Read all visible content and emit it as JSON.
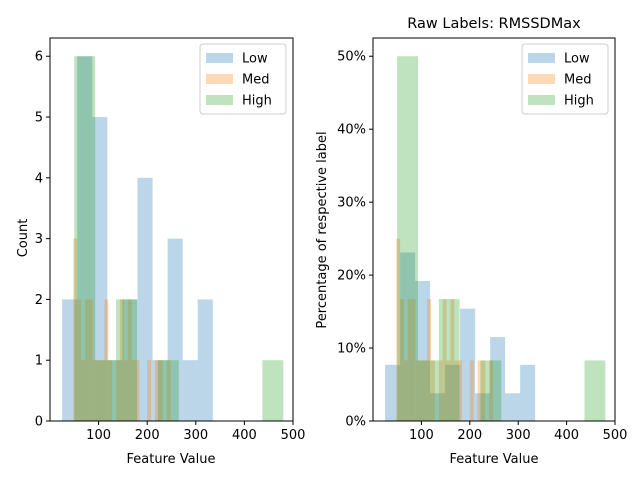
{
  "chart_data": [
    {
      "type": "histogram",
      "title": "",
      "xlabel": "Feature Value",
      "ylabel": "Count",
      "xlim": [
        0,
        500
      ],
      "ylim": [
        0,
        6.3
      ],
      "x_ticks": [
        "100",
        "200",
        "300",
        "400",
        "500"
      ],
      "x_tick_values": [
        100,
        200,
        300,
        400,
        500
      ],
      "y_ticks": [
        "0",
        "1",
        "2",
        "3",
        "4",
        "5",
        "6"
      ],
      "y_tick_values": [
        0,
        1,
        2,
        3,
        4,
        5,
        6
      ],
      "legend": {
        "position": "top-right",
        "entries": [
          "Low",
          "Med",
          "High"
        ]
      },
      "series": [
        {
          "name": "Low",
          "color": "#1f77b4",
          "bins": [
            [
              25,
              56,
              2
            ],
            [
              56,
              87,
              6
            ],
            [
              87,
              118,
              5
            ],
            [
              118,
              149,
              1
            ],
            [
              149,
              180,
              2
            ],
            [
              180,
              211,
              4
            ],
            [
              211,
              242,
              1
            ],
            [
              242,
              273,
              3
            ],
            [
              273,
              304,
              1
            ],
            [
              304,
              335,
              2
            ]
          ]
        },
        {
          "name": "Med",
          "color": "#ff7f0e",
          "bins": [
            [
              48,
              56,
              3
            ],
            [
              56,
              64,
              2
            ],
            [
              64,
              72,
              1
            ],
            [
              72,
              80,
              2
            ],
            [
              80,
              88,
              2
            ],
            [
              88,
              96,
              1
            ],
            [
              96,
              104,
              1
            ],
            [
              104,
              112,
              1
            ],
            [
              112,
              120,
              2
            ],
            [
              120,
              128,
              1
            ],
            [
              128,
              136,
              0
            ],
            [
              136,
              144,
              1
            ],
            [
              144,
              152,
              2
            ],
            [
              152,
              160,
              1
            ],
            [
              160,
              168,
              2
            ],
            [
              168,
              176,
              1
            ],
            [
              176,
              184,
              1
            ],
            [
              184,
              192,
              0
            ],
            [
              192,
              200,
              0
            ],
            [
              200,
              208,
              1
            ],
            [
              208,
              216,
              0
            ],
            [
              216,
              224,
              1
            ],
            [
              224,
              232,
              1
            ],
            [
              232,
              240,
              0
            ],
            [
              240,
              248,
              1
            ]
          ]
        },
        {
          "name": "High",
          "color": "#2ca02c",
          "bins": [
            [
              50,
              93,
              6
            ],
            [
              93,
              136,
              1
            ],
            [
              136,
              179,
              2
            ],
            [
              179,
              222,
              0
            ],
            [
              222,
              265,
              1
            ],
            [
              265,
              308,
              0
            ],
            [
              308,
              351,
              0
            ],
            [
              351,
              394,
              0
            ],
            [
              394,
              437,
              0
            ],
            [
              437,
              480,
              1
            ]
          ]
        }
      ]
    },
    {
      "type": "histogram",
      "title": "Raw Labels: RMSSDMax",
      "xlabel": "Feature Value",
      "ylabel": "Percentage of respective label",
      "xlim": [
        0,
        500
      ],
      "ylim": [
        0,
        0.525
      ],
      "x_ticks": [
        "100",
        "200",
        "300",
        "400",
        "500"
      ],
      "x_tick_values": [
        100,
        200,
        300,
        400,
        500
      ],
      "y_ticks": [
        "0%",
        "10%",
        "20%",
        "30%",
        "40%",
        "50%"
      ],
      "y_tick_values": [
        0,
        0.1,
        0.2,
        0.3,
        0.4,
        0.5
      ],
      "legend": {
        "position": "top-right",
        "entries": [
          "Low",
          "Med",
          "High"
        ]
      },
      "series": [
        {
          "name": "Low",
          "color": "#1f77b4",
          "bins": [
            [
              25,
              56,
              0.077
            ],
            [
              56,
              87,
              0.231
            ],
            [
              87,
              118,
              0.192
            ],
            [
              118,
              149,
              0.038
            ],
            [
              149,
              180,
              0.077
            ],
            [
              180,
              211,
              0.154
            ],
            [
              211,
              242,
              0.038
            ],
            [
              242,
              273,
              0.115
            ],
            [
              273,
              304,
              0.038
            ],
            [
              304,
              335,
              0.077
            ]
          ]
        },
        {
          "name": "Med",
          "color": "#ff7f0e",
          "bins": [
            [
              48,
              56,
              0.25
            ],
            [
              56,
              64,
              0.167
            ],
            [
              64,
              72,
              0.083
            ],
            [
              72,
              80,
              0.167
            ],
            [
              80,
              88,
              0.167
            ],
            [
              88,
              96,
              0.083
            ],
            [
              96,
              104,
              0.083
            ],
            [
              104,
              112,
              0.083
            ],
            [
              112,
              120,
              0.167
            ],
            [
              120,
              128,
              0.083
            ],
            [
              128,
              136,
              0
            ],
            [
              136,
              144,
              0.083
            ],
            [
              144,
              152,
              0.167
            ],
            [
              152,
              160,
              0.083
            ],
            [
              160,
              168,
              0.167
            ],
            [
              168,
              176,
              0.083
            ],
            [
              176,
              184,
              0.083
            ],
            [
              184,
              192,
              0
            ],
            [
              192,
              200,
              0
            ],
            [
              200,
              208,
              0.083
            ],
            [
              208,
              216,
              0
            ],
            [
              216,
              224,
              0.083
            ],
            [
              224,
              232,
              0.083
            ],
            [
              232,
              240,
              0
            ],
            [
              240,
              248,
              0.083
            ]
          ]
        },
        {
          "name": "High",
          "color": "#2ca02c",
          "bins": [
            [
              50,
              93,
              0.5
            ],
            [
              93,
              136,
              0.083
            ],
            [
              136,
              179,
              0.167
            ],
            [
              179,
              222,
              0
            ],
            [
              222,
              265,
              0.083
            ],
            [
              265,
              308,
              0
            ],
            [
              308,
              351,
              0
            ],
            [
              351,
              394,
              0
            ],
            [
              394,
              437,
              0
            ],
            [
              437,
              480,
              0.083
            ]
          ]
        }
      ]
    }
  ]
}
